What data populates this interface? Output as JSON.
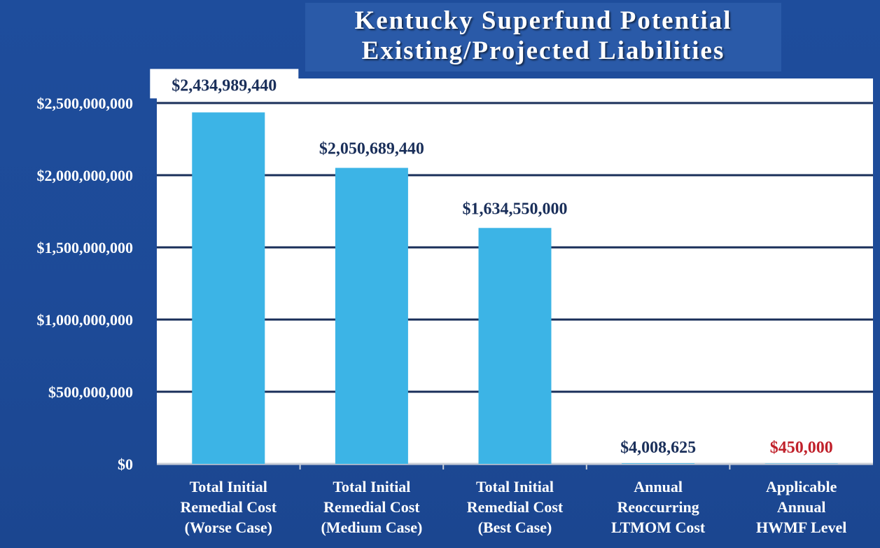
{
  "chart_data": {
    "type": "bar",
    "title": [
      "Kentucky Superfund Potential",
      "Existing/Projected Liabilities"
    ],
    "categories": [
      [
        "Total Initial",
        "Remedial Cost",
        "(Worse Case)"
      ],
      [
        "Total Initial",
        "Remedial Cost",
        "(Medium Case)"
      ],
      [
        "Total Initial",
        "Remedial Cost",
        "(Best Case)"
      ],
      [
        "Annual",
        "Reoccurring",
        "LTMOM Cost"
      ],
      [
        "Applicable",
        "Annual",
        "HWMF Level"
      ]
    ],
    "values": [
      2434989440,
      2050689440,
      1634550000,
      4008625,
      450000
    ],
    "data_labels": [
      "$2,434,989,440",
      "$2,050,689,440",
      "$1,634,550,000",
      "$4,008,625",
      "$450,000"
    ],
    "data_label_colors": [
      "#1a2f5a",
      "#1a2f5a",
      "#1a2f5a",
      "#1a2f5a",
      "#c0202a"
    ],
    "yticks": [
      0,
      500000000,
      1000000000,
      1500000000,
      2000000000,
      2500000000
    ],
    "ytick_labels": [
      "$0",
      "$500,000,000",
      "$1,000,000,000",
      "$1,500,000,000",
      "$2,000,000,000",
      "$2,500,000,000"
    ],
    "ylim": [
      0,
      2500000000
    ],
    "grid": true,
    "legend": "none",
    "colors": {
      "bar": "#3cb4e6",
      "plot_bg": "#ffffff",
      "grid": "#1a2f5a",
      "background": "#1e4d9c",
      "highlight_label": "#c0202a"
    }
  }
}
